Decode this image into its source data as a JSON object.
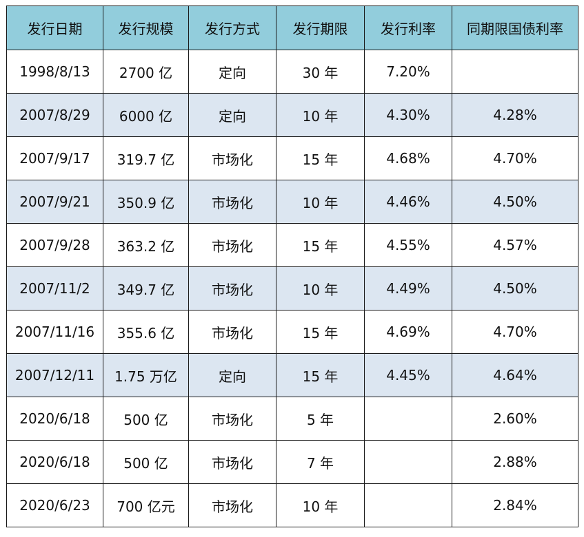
{
  "table": {
    "headers": [
      "发行日期",
      "发行规模",
      "发行方式",
      "发行期限",
      "发行利率",
      "同期限国债利率"
    ],
    "rows": [
      [
        "1998/8/13",
        "2700 亿",
        "定向",
        "30 年",
        "7.20%",
        ""
      ],
      [
        "2007/8/29",
        "6000 亿",
        "定向",
        "10 年",
        "4.30%",
        "4.28%"
      ],
      [
        "2007/9/17",
        "319.7 亿",
        "市场化",
        "15 年",
        "4.68%",
        "4.70%"
      ],
      [
        "2007/9/21",
        "350.9 亿",
        "市场化",
        "10 年",
        "4.46%",
        "4.50%"
      ],
      [
        "2007/9/28",
        "363.2 亿",
        "市场化",
        "15 年",
        "4.55%",
        "4.57%"
      ],
      [
        "2007/11/2",
        "349.7 亿",
        "市场化",
        "10 年",
        "4.49%",
        "4.50%"
      ],
      [
        "2007/11/16",
        "355.6 亿",
        "市场化",
        "15 年",
        "4.69%",
        "4.70%"
      ],
      [
        "2007/12/11",
        "1.75 万亿",
        "定向",
        "15 年",
        "4.45%",
        "4.64%"
      ],
      [
        "2020/6/18",
        "500 亿",
        "市场化",
        "5 年",
        "",
        "2.60%"
      ],
      [
        "2020/6/18",
        "500 亿",
        "市场化",
        "7 年",
        "",
        "2.88%"
      ],
      [
        "2020/6/23",
        "700 亿元",
        "市场化",
        "10 年",
        "",
        "2.84%"
      ]
    ]
  },
  "colors": {
    "header_bg": "#92cddc",
    "stripe_bg": "#dce6f1",
    "row_bg": "#ffffff",
    "border": "#1a1a1a"
  }
}
